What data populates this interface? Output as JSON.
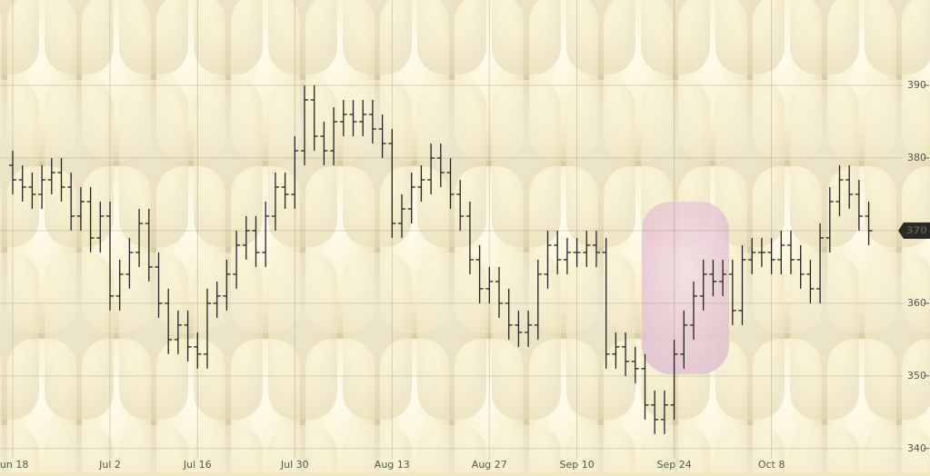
{
  "chart_data": {
    "type": "ohlc",
    "categories": [
      "Jun 18",
      null,
      null,
      null,
      null,
      null,
      null,
      null,
      null,
      null,
      "Jul 2",
      null,
      null,
      null,
      null,
      null,
      null,
      null,
      null,
      "Jul 16",
      null,
      null,
      null,
      null,
      null,
      null,
      null,
      null,
      null,
      "Jul 30",
      null,
      null,
      null,
      null,
      null,
      null,
      null,
      null,
      null,
      "Aug 13",
      null,
      null,
      null,
      null,
      null,
      null,
      null,
      null,
      null,
      "Aug 27",
      null,
      null,
      null,
      null,
      null,
      null,
      null,
      null,
      "Sep 10",
      null,
      null,
      null,
      null,
      null,
      null,
      null,
      null,
      null,
      "Sep 24",
      null,
      null,
      null,
      null,
      null,
      null,
      null,
      null,
      null,
      "Oct 8",
      null,
      null,
      null,
      null,
      null,
      null,
      null,
      null,
      null,
      null
    ],
    "series": {
      "open": [
        379,
        377,
        376,
        375,
        377,
        378,
        376,
        372,
        374,
        369,
        372,
        361,
        364,
        367,
        371,
        365,
        360,
        355,
        357,
        354,
        353,
        360,
        361,
        364,
        368,
        370,
        367,
        372,
        376,
        375,
        381,
        388,
        383,
        381,
        385,
        386,
        385,
        386,
        384,
        382,
        371,
        373,
        376,
        377,
        380,
        378,
        375,
        372,
        366,
        362,
        363,
        360,
        357,
        356,
        357,
        364,
        368,
        366,
        367,
        367,
        368,
        367,
        353,
        354,
        352,
        351,
        346,
        344,
        346,
        353,
        357,
        361,
        364,
        363,
        364,
        359,
        366,
        367,
        367,
        366,
        368,
        366,
        364,
        362,
        369,
        374,
        377,
        375,
        372
      ],
      "high": [
        381,
        379,
        378,
        379,
        380,
        380,
        378,
        376,
        376,
        374,
        374,
        366,
        369,
        373,
        373,
        367,
        362,
        359,
        359,
        356,
        362,
        363,
        366,
        370,
        372,
        372,
        374,
        378,
        378,
        383,
        390,
        390,
        385,
        387,
        388,
        388,
        388,
        388,
        386,
        384,
        375,
        378,
        379,
        382,
        382,
        380,
        377,
        374,
        368,
        365,
        365,
        362,
        359,
        359,
        366,
        370,
        370,
        369,
        369,
        370,
        370,
        369,
        356,
        356,
        354,
        353,
        348,
        348,
        355,
        359,
        363,
        366,
        366,
        366,
        366,
        368,
        369,
        369,
        369,
        370,
        370,
        368,
        366,
        371,
        376,
        379,
        379,
        377,
        374
      ],
      "low": [
        375,
        374,
        373,
        373,
        375,
        374,
        370,
        370,
        367,
        367,
        359,
        359,
        362,
        365,
        363,
        358,
        353,
        353,
        352,
        351,
        351,
        358,
        359,
        362,
        366,
        365,
        365,
        370,
        373,
        373,
        379,
        381,
        379,
        379,
        383,
        383,
        383,
        382,
        380,
        369,
        369,
        371,
        374,
        375,
        376,
        373,
        370,
        364,
        360,
        360,
        358,
        355,
        354,
        354,
        355,
        362,
        364,
        364,
        365,
        365,
        365,
        351,
        351,
        350,
        349,
        344,
        342,
        342,
        344,
        351,
        355,
        359,
        361,
        361,
        357,
        357,
        364,
        365,
        364,
        364,
        364,
        362,
        360,
        360,
        367,
        372,
        373,
        370,
        368
      ],
      "close": [
        377,
        376,
        375,
        377,
        378,
        376,
        372,
        374,
        369,
        372,
        361,
        364,
        367,
        371,
        365,
        360,
        355,
        357,
        354,
        353,
        360,
        361,
        364,
        368,
        370,
        367,
        372,
        376,
        375,
        381,
        388,
        383,
        381,
        385,
        386,
        385,
        386,
        384,
        382,
        371,
        373,
        376,
        377,
        380,
        378,
        375,
        372,
        366,
        362,
        363,
        360,
        357,
        356,
        357,
        364,
        368,
        366,
        367,
        367,
        368,
        367,
        353,
        354,
        352,
        351,
        346,
        344,
        346,
        353,
        357,
        361,
        364,
        363,
        364,
        359,
        366,
        367,
        367,
        366,
        368,
        366,
        364,
        362,
        369,
        374,
        377,
        375,
        372,
        370
      ]
    },
    "color": "#222222",
    "ylim": [
      338.6,
      400.25
    ],
    "yticks": [
      340,
      350,
      360,
      370,
      380,
      390
    ],
    "grid": true,
    "current_price": 370
  }
}
